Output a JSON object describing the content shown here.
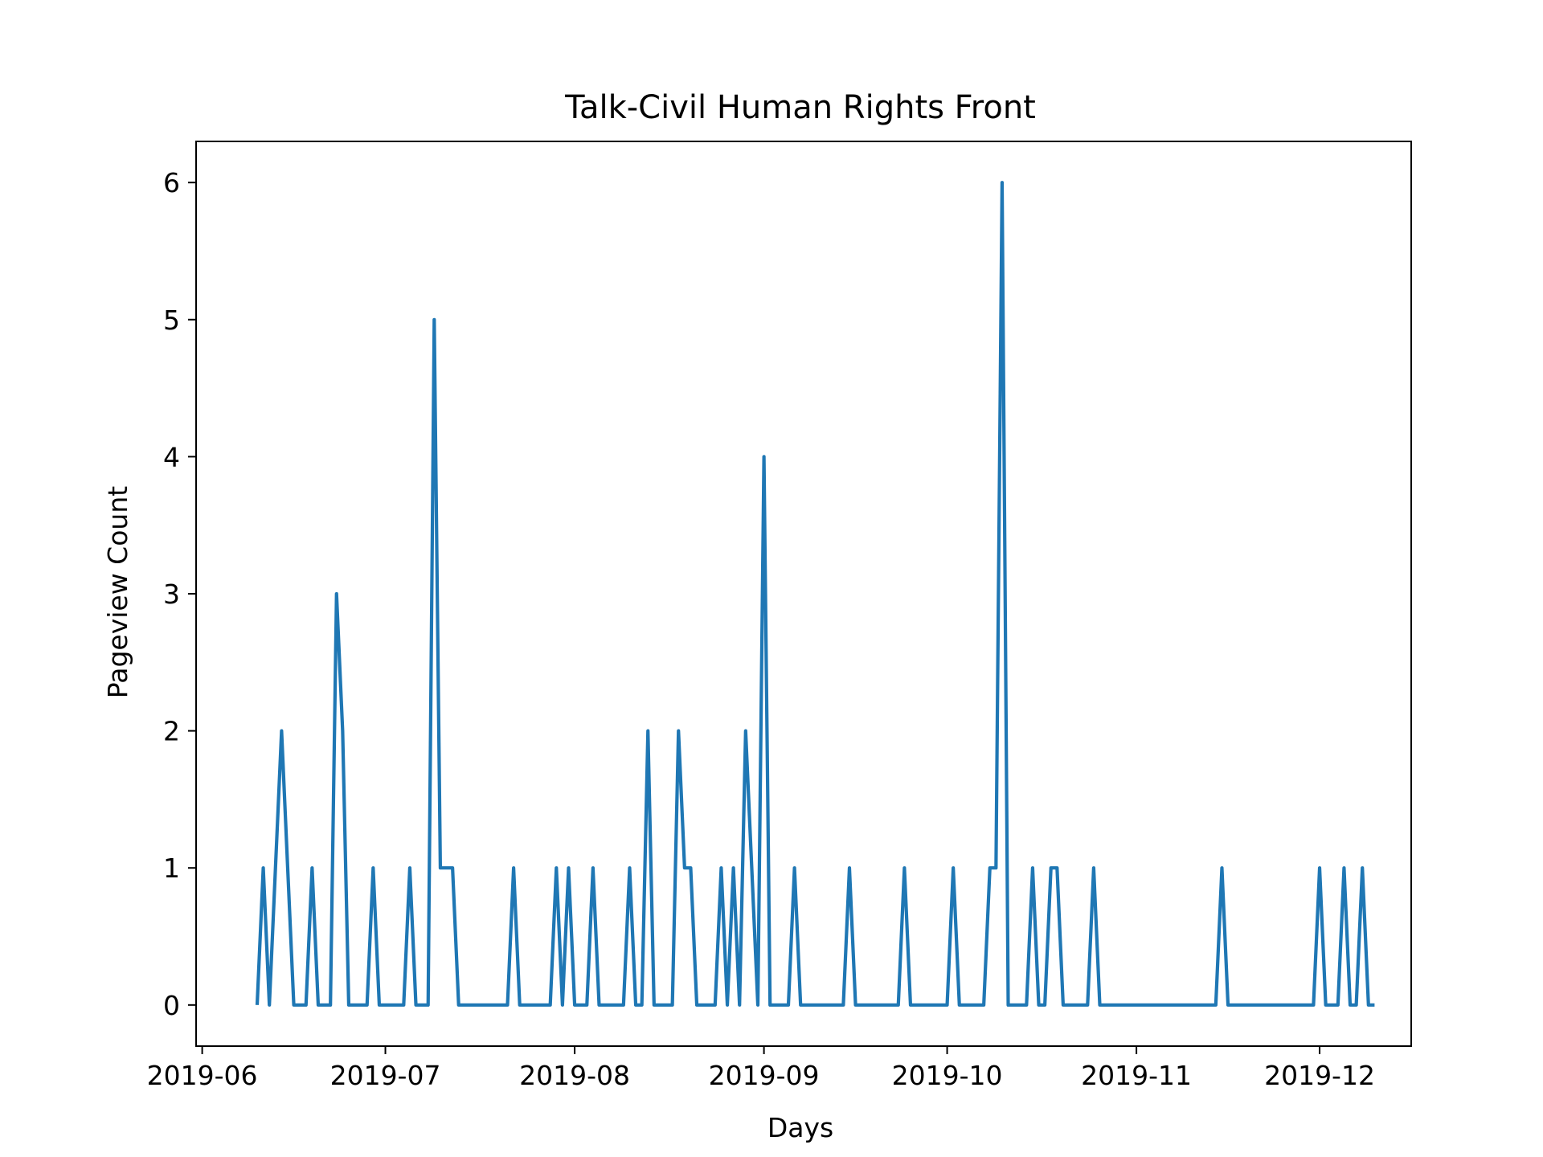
{
  "chart_data": {
    "type": "line",
    "title": "Talk-Civil Human Rights Front",
    "xlabel": "Days",
    "ylabel": "Pageview Count",
    "grid": false,
    "legend": "none",
    "line_color": "#1f77b4",
    "x_ticks": [
      "2019-06",
      "2019-07",
      "2019-08",
      "2019-09",
      "2019-10",
      "2019-11",
      "2019-12"
    ],
    "y_ticks": [
      0,
      1,
      2,
      3,
      4,
      5,
      6
    ],
    "xlim": [
      "2019-05-31",
      "2019-12-16"
    ],
    "ylim": [
      -0.3,
      6.3
    ],
    "series": [
      {
        "points": [
          [
            "2019-06-10",
            0
          ],
          [
            "2019-06-11",
            1
          ],
          [
            "2019-06-12",
            0
          ],
          [
            "2019-06-13",
            1
          ],
          [
            "2019-06-14",
            2
          ],
          [
            "2019-06-16",
            0
          ],
          [
            "2019-06-18",
            0
          ],
          [
            "2019-06-19",
            1
          ],
          [
            "2019-06-20",
            0
          ],
          [
            "2019-06-22",
            0
          ],
          [
            "2019-06-23",
            3
          ],
          [
            "2019-06-24",
            2
          ],
          [
            "2019-06-25",
            0
          ],
          [
            "2019-06-28",
            0
          ],
          [
            "2019-06-29",
            1
          ],
          [
            "2019-06-30",
            0
          ],
          [
            "2019-07-04",
            0
          ],
          [
            "2019-07-05",
            1
          ],
          [
            "2019-07-06",
            0
          ],
          [
            "2019-07-08",
            0
          ],
          [
            "2019-07-09",
            5
          ],
          [
            "2019-07-10",
            1
          ],
          [
            "2019-07-12",
            1
          ],
          [
            "2019-07-13",
            0
          ],
          [
            "2019-07-21",
            0
          ],
          [
            "2019-07-22",
            1
          ],
          [
            "2019-07-23",
            0
          ],
          [
            "2019-07-28",
            0
          ],
          [
            "2019-07-29",
            1
          ],
          [
            "2019-07-30",
            0
          ],
          [
            "2019-07-31",
            1
          ],
          [
            "2019-08-01",
            0
          ],
          [
            "2019-08-03",
            0
          ],
          [
            "2019-08-04",
            1
          ],
          [
            "2019-08-05",
            0
          ],
          [
            "2019-08-09",
            0
          ],
          [
            "2019-08-10",
            1
          ],
          [
            "2019-08-11",
            0
          ],
          [
            "2019-08-12",
            0
          ],
          [
            "2019-08-13",
            2
          ],
          [
            "2019-08-14",
            0
          ],
          [
            "2019-08-17",
            0
          ],
          [
            "2019-08-18",
            2
          ],
          [
            "2019-08-19",
            1
          ],
          [
            "2019-08-20",
            1
          ],
          [
            "2019-08-21",
            0
          ],
          [
            "2019-08-24",
            0
          ],
          [
            "2019-08-25",
            1
          ],
          [
            "2019-08-26",
            0
          ],
          [
            "2019-08-27",
            1
          ],
          [
            "2019-08-28",
            0
          ],
          [
            "2019-08-29",
            2
          ],
          [
            "2019-08-31",
            0
          ],
          [
            "2019-09-01",
            4
          ],
          [
            "2019-09-02",
            0
          ],
          [
            "2019-09-05",
            0
          ],
          [
            "2019-09-06",
            1
          ],
          [
            "2019-09-07",
            0
          ],
          [
            "2019-09-14",
            0
          ],
          [
            "2019-09-15",
            1
          ],
          [
            "2019-09-16",
            0
          ],
          [
            "2019-09-23",
            0
          ],
          [
            "2019-09-24",
            1
          ],
          [
            "2019-09-25",
            0
          ],
          [
            "2019-10-01",
            0
          ],
          [
            "2019-10-02",
            1
          ],
          [
            "2019-10-03",
            0
          ],
          [
            "2019-10-07",
            0
          ],
          [
            "2019-10-08",
            1
          ],
          [
            "2019-10-09",
            1
          ],
          [
            "2019-10-10",
            6
          ],
          [
            "2019-10-11",
            0
          ],
          [
            "2019-10-14",
            0
          ],
          [
            "2019-10-15",
            1
          ],
          [
            "2019-10-16",
            0
          ],
          [
            "2019-10-17",
            0
          ],
          [
            "2019-10-18",
            1
          ],
          [
            "2019-10-19",
            1
          ],
          [
            "2019-10-20",
            0
          ],
          [
            "2019-10-24",
            0
          ],
          [
            "2019-10-25",
            1
          ],
          [
            "2019-10-26",
            0
          ],
          [
            "2019-11-14",
            0
          ],
          [
            "2019-11-15",
            1
          ],
          [
            "2019-11-16",
            0
          ],
          [
            "2019-11-30",
            0
          ],
          [
            "2019-12-01",
            1
          ],
          [
            "2019-12-02",
            0
          ],
          [
            "2019-12-04",
            0
          ],
          [
            "2019-12-05",
            1
          ],
          [
            "2019-12-06",
            0
          ],
          [
            "2019-12-07",
            0
          ],
          [
            "2019-12-08",
            1
          ],
          [
            "2019-12-09",
            0
          ],
          [
            "2019-12-10",
            0
          ]
        ]
      }
    ]
  }
}
